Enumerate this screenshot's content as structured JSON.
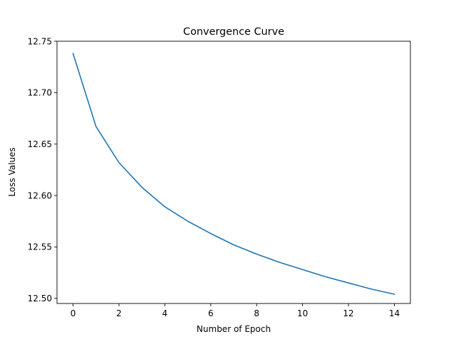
{
  "chart_data": {
    "type": "line",
    "title": "Convergence Curve",
    "xlabel": "Number of Epoch",
    "ylabel": "Loss Values",
    "xlim": [
      -0.7,
      14.7
    ],
    "ylim": [
      12.495,
      12.75
    ],
    "xticks": [
      0,
      2,
      4,
      6,
      8,
      10,
      12,
      14
    ],
    "yticks": [
      12.5,
      12.55,
      12.6,
      12.65,
      12.7,
      12.75
    ],
    "grid": false,
    "legend": "none",
    "series": [
      {
        "color": "#1f77b4",
        "x": [
          0,
          1,
          2,
          3,
          4,
          5,
          6,
          7,
          8,
          9,
          10,
          11,
          12,
          13,
          14
        ],
        "y": [
          12.738,
          12.667,
          12.632,
          12.608,
          12.589,
          12.575,
          12.563,
          12.552,
          12.543,
          12.535,
          12.528,
          12.521,
          12.515,
          12.509,
          12.504
        ]
      }
    ]
  }
}
